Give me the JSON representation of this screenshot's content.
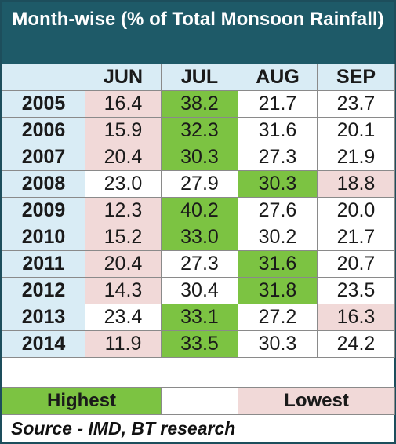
{
  "chart_data": {
    "type": "table",
    "title": "Month-wise (% of Total Monsoon Rainfall)",
    "columns": [
      "JUN",
      "JUL",
      "AUG",
      "SEP"
    ],
    "rows": [
      {
        "year": "2005",
        "values": [
          "16.4",
          "38.2",
          "21.7",
          "23.7"
        ],
        "highlight": [
          "low",
          "high",
          "",
          ""
        ]
      },
      {
        "year": "2006",
        "values": [
          "15.9",
          "32.3",
          "31.6",
          "20.1"
        ],
        "highlight": [
          "low",
          "high",
          "",
          ""
        ]
      },
      {
        "year": "2007",
        "values": [
          "20.4",
          "30.3",
          "27.3",
          "21.9"
        ],
        "highlight": [
          "low",
          "high",
          "",
          ""
        ]
      },
      {
        "year": "2008",
        "values": [
          "23.0",
          "27.9",
          "30.3",
          "18.8"
        ],
        "highlight": [
          "",
          "",
          "high",
          "low"
        ]
      },
      {
        "year": "2009",
        "values": [
          "12.3",
          "40.2",
          "27.6",
          "20.0"
        ],
        "highlight": [
          "low",
          "high",
          "",
          ""
        ]
      },
      {
        "year": "2010",
        "values": [
          "15.2",
          "33.0",
          "30.2",
          "21.7"
        ],
        "highlight": [
          "low",
          "high",
          "",
          ""
        ]
      },
      {
        "year": "2011",
        "values": [
          "20.4",
          "27.3",
          "31.6",
          "20.7"
        ],
        "highlight": [
          "low",
          "",
          "high",
          ""
        ]
      },
      {
        "year": "2012",
        "values": [
          "14.3",
          "30.4",
          "31.8",
          "23.5"
        ],
        "highlight": [
          "low",
          "",
          "high",
          ""
        ]
      },
      {
        "year": "2013",
        "values": [
          "23.4",
          "33.1",
          "27.2",
          "16.3"
        ],
        "highlight": [
          "",
          "high",
          "",
          "low"
        ]
      },
      {
        "year": "2014",
        "values": [
          "11.9",
          "33.5",
          "30.3",
          "24.2"
        ],
        "highlight": [
          "low",
          "high",
          "",
          ""
        ]
      }
    ]
  },
  "legend": {
    "highest_label": "Highest",
    "lowest_label": "Lowest",
    "highest_color": "#7cc342",
    "lowest_color": "#f1d9d8"
  },
  "source": "Source - IMD, BT research",
  "colors": {
    "title_bg": "#1e5a68",
    "header_bg": "#d9ecf5"
  }
}
